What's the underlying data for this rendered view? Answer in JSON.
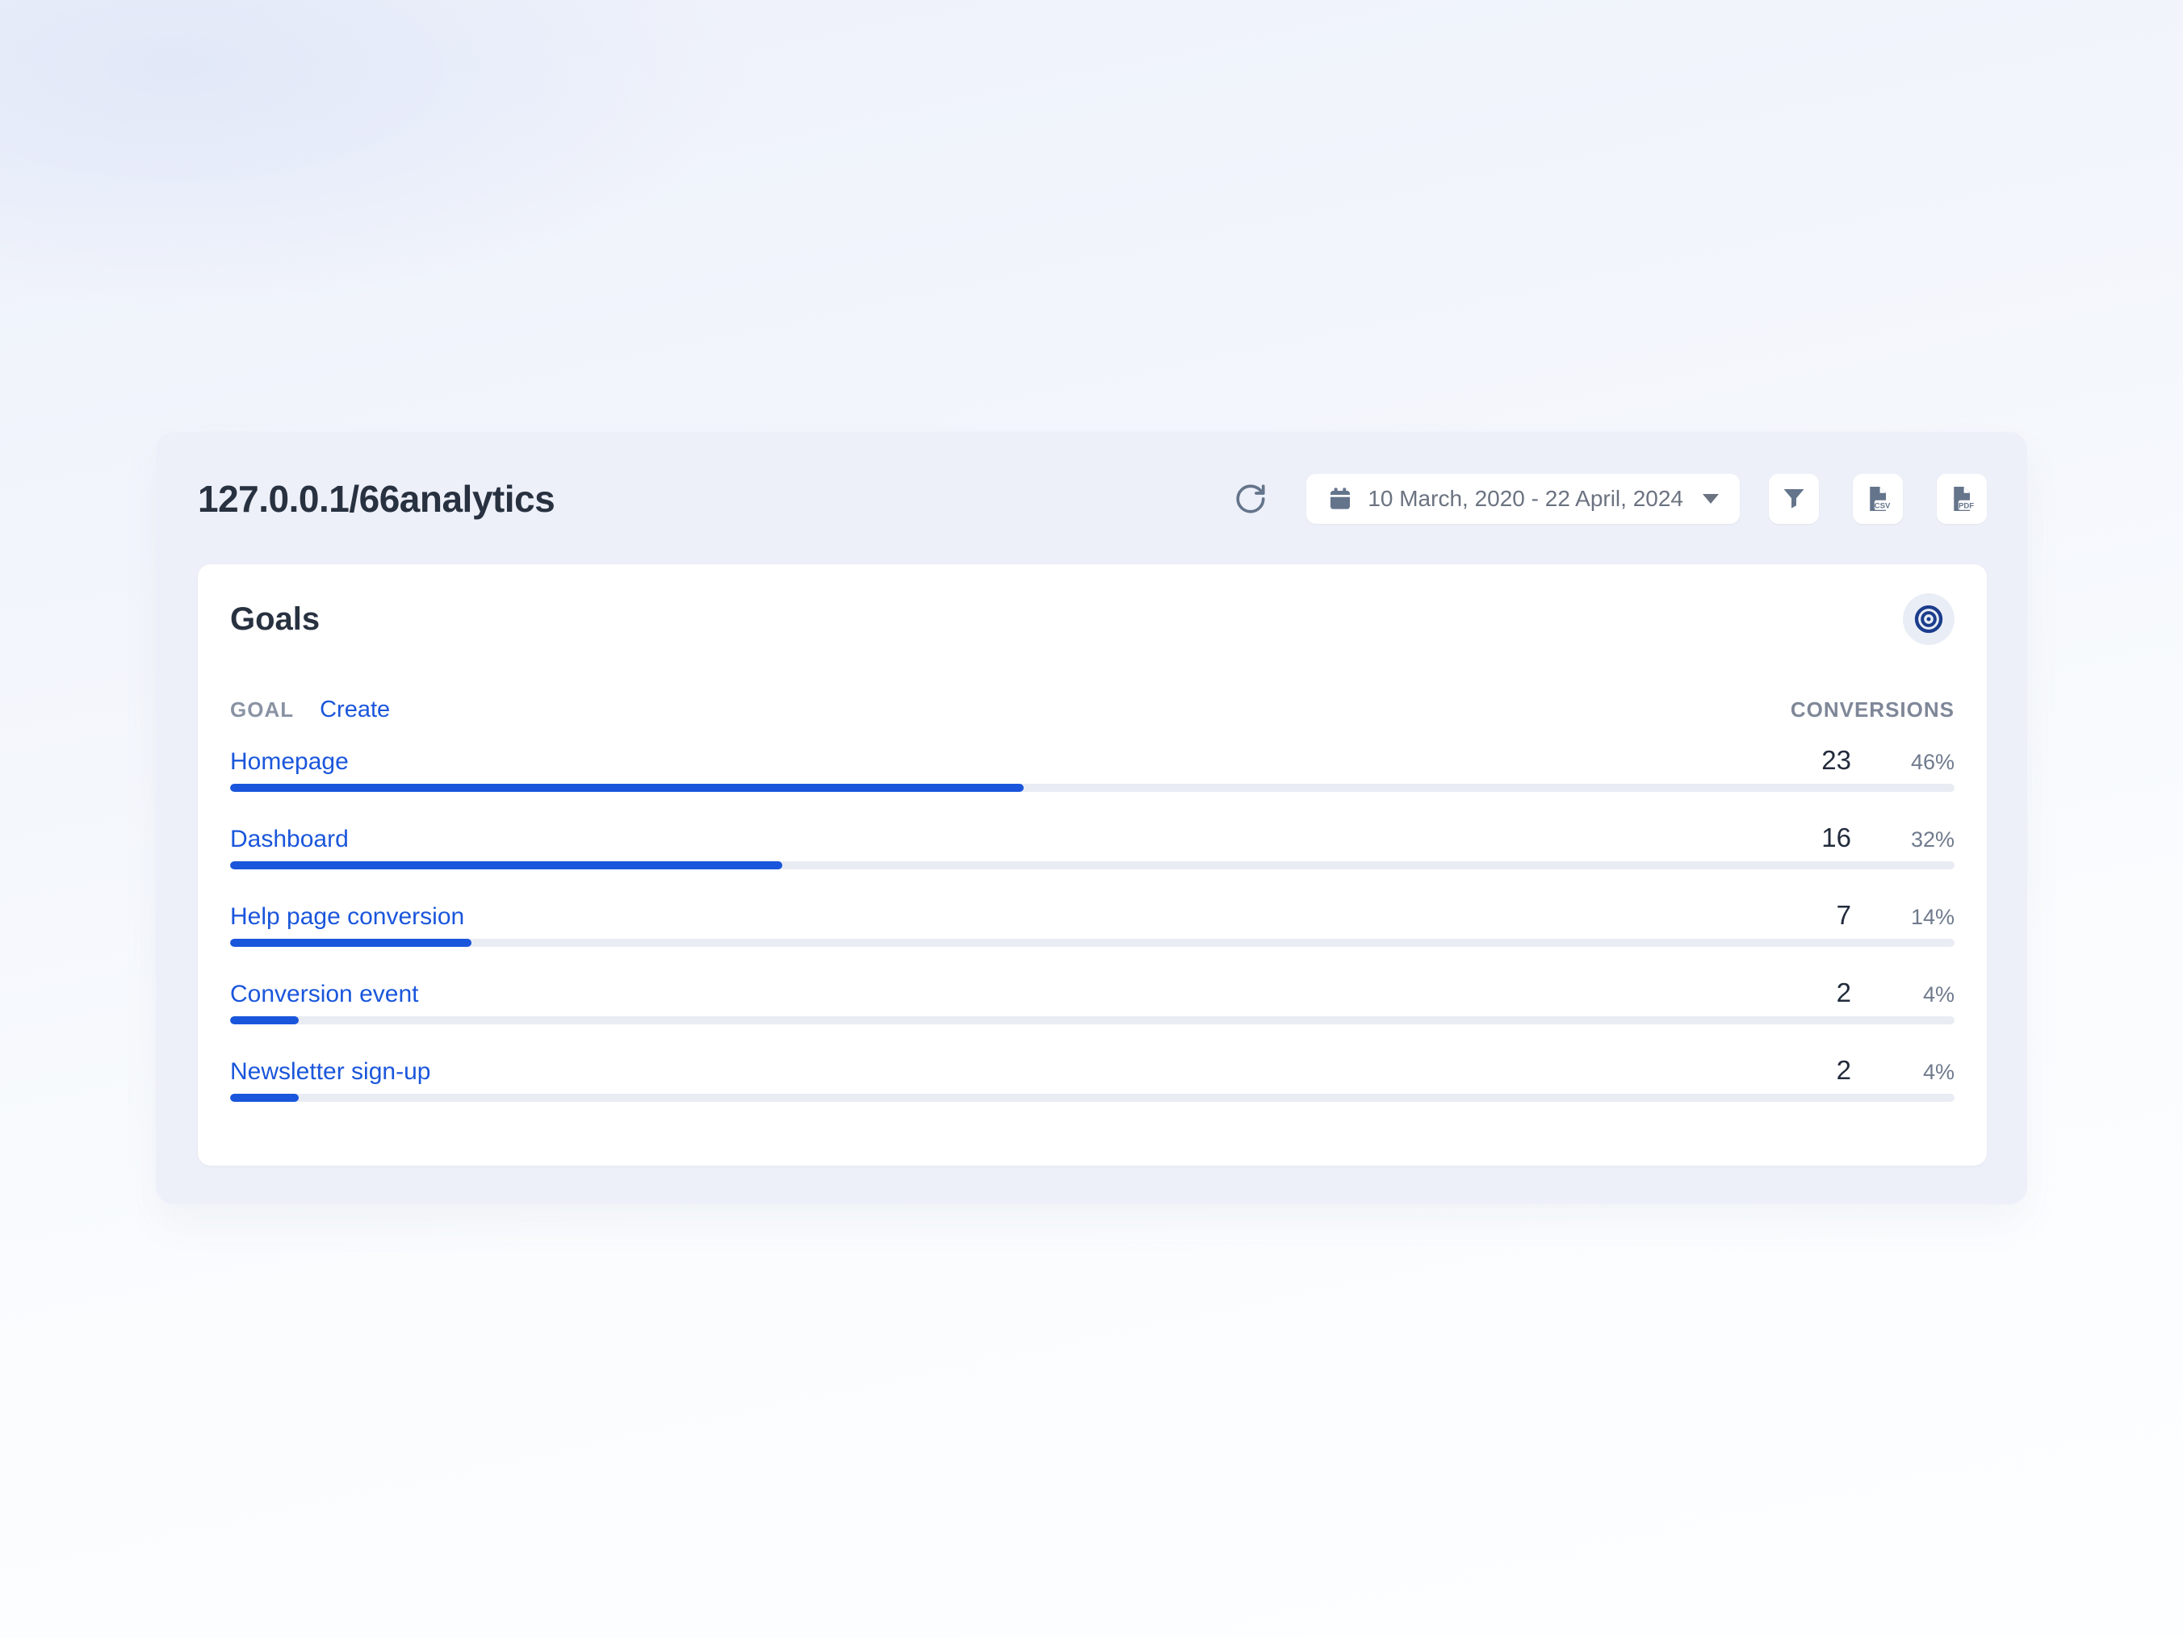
{
  "page": {
    "title": "127.0.0.1/66analytics"
  },
  "toolbar": {
    "date_range": "10 March, 2020 - 22 April, 2024",
    "csv_label": "CSV",
    "pdf_label": "PDF",
    "icons": {
      "refresh": "refresh-icon",
      "calendar": "calendar-icon",
      "caret": "chevron-down-icon",
      "filter": "funnel-icon",
      "export_csv": "file-csv-icon",
      "export_pdf": "file-pdf-icon"
    }
  },
  "goals_card": {
    "title": "Goals",
    "target_icon": "bullseye-icon",
    "columns": {
      "goal": "GOAL",
      "create": "Create",
      "conversions": "CONVERSIONS"
    },
    "rows": [
      {
        "label": "Homepage",
        "conversions": "23",
        "percent": "46%",
        "bar_percent": 46
      },
      {
        "label": "Dashboard",
        "conversions": "16",
        "percent": "32%",
        "bar_percent": 32
      },
      {
        "label": "Help page conversion",
        "conversions": "7",
        "percent": "14%",
        "bar_percent": 14
      },
      {
        "label": "Conversion event",
        "conversions": "2",
        "percent": "4%",
        "bar_percent": 4
      },
      {
        "label": "Newsletter sign-up",
        "conversions": "2",
        "percent": "4%",
        "bar_percent": 4
      }
    ]
  },
  "colors": {
    "accent_blue": "#1a56db",
    "bar_track": "#e9edf3",
    "dark_text": "#28313f",
    "icon_gray": "#64748b",
    "bullseye_blue": "#1c3c8c",
    "panel_bg": "#edf0f8",
    "card_bg": "#ffffff"
  }
}
